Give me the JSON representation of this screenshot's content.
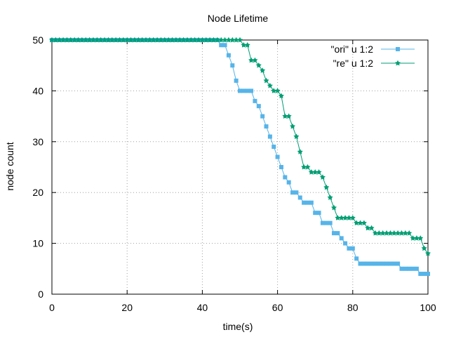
{
  "chart_data": {
    "type": "line",
    "title": "Node Lifetime",
    "xlabel": "time(s)",
    "ylabel": "node count",
    "xlim": [
      0,
      100
    ],
    "ylim": [
      0,
      50
    ],
    "xticks": [
      0,
      20,
      40,
      60,
      80,
      100
    ],
    "yticks": [
      0,
      10,
      20,
      30,
      40,
      50
    ],
    "grid": true,
    "legend_position": "top-right",
    "series": [
      {
        "name": "\"ori\" u 1:2",
        "color": "#56b4e9",
        "marker": "filled-square",
        "x": [
          0,
          1,
          2,
          3,
          4,
          5,
          6,
          7,
          8,
          9,
          10,
          11,
          12,
          13,
          14,
          15,
          16,
          17,
          18,
          19,
          20,
          21,
          22,
          23,
          24,
          25,
          26,
          27,
          28,
          29,
          30,
          31,
          32,
          33,
          34,
          35,
          36,
          37,
          38,
          39,
          40,
          41,
          42,
          43,
          44,
          45,
          46,
          47,
          48,
          49,
          50,
          51,
          52,
          53,
          54,
          55,
          56,
          57,
          58,
          59,
          60,
          61,
          62,
          63,
          64,
          65,
          66,
          67,
          68,
          69,
          70,
          71,
          72,
          73,
          74,
          75,
          76,
          77,
          78,
          79,
          80,
          81,
          82,
          83,
          84,
          85,
          86,
          87,
          88,
          89,
          90,
          91,
          92,
          93,
          94,
          95,
          96,
          97,
          98,
          99,
          100
        ],
        "y": [
          50,
          50,
          50,
          50,
          50,
          50,
          50,
          50,
          50,
          50,
          50,
          50,
          50,
          50,
          50,
          50,
          50,
          50,
          50,
          50,
          50,
          50,
          50,
          50,
          50,
          50,
          50,
          50,
          50,
          50,
          50,
          50,
          50,
          50,
          50,
          50,
          50,
          50,
          50,
          50,
          50,
          50,
          50,
          50,
          50,
          49,
          49,
          47,
          45,
          42,
          40,
          40,
          40,
          40,
          38,
          37,
          35,
          33,
          31,
          29,
          27,
          25,
          23,
          22,
          20,
          20,
          19,
          18,
          18,
          18,
          16,
          16,
          14,
          14,
          14,
          12,
          12,
          11,
          10,
          9,
          9,
          7,
          6,
          6,
          6,
          6,
          6,
          6,
          6,
          6,
          6,
          6,
          6,
          5,
          5,
          5,
          5,
          5,
          4,
          4,
          4
        ]
      },
      {
        "name": "\"re\" u 1:2",
        "color": "#009e73",
        "marker": "filled-star",
        "x": [
          0,
          1,
          2,
          3,
          4,
          5,
          6,
          7,
          8,
          9,
          10,
          11,
          12,
          13,
          14,
          15,
          16,
          17,
          18,
          19,
          20,
          21,
          22,
          23,
          24,
          25,
          26,
          27,
          28,
          29,
          30,
          31,
          32,
          33,
          34,
          35,
          36,
          37,
          38,
          39,
          40,
          41,
          42,
          43,
          44,
          45,
          46,
          47,
          48,
          49,
          50,
          51,
          52,
          53,
          54,
          55,
          56,
          57,
          58,
          59,
          60,
          61,
          62,
          63,
          64,
          65,
          66,
          67,
          68,
          69,
          70,
          71,
          72,
          73,
          74,
          75,
          76,
          77,
          78,
          79,
          80,
          81,
          82,
          83,
          84,
          85,
          86,
          87,
          88,
          89,
          90,
          91,
          92,
          93,
          94,
          95,
          96,
          97,
          98,
          99,
          100
        ],
        "y": [
          50,
          50,
          50,
          50,
          50,
          50,
          50,
          50,
          50,
          50,
          50,
          50,
          50,
          50,
          50,
          50,
          50,
          50,
          50,
          50,
          50,
          50,
          50,
          50,
          50,
          50,
          50,
          50,
          50,
          50,
          50,
          50,
          50,
          50,
          50,
          50,
          50,
          50,
          50,
          50,
          50,
          50,
          50,
          50,
          50,
          50,
          50,
          50,
          50,
          50,
          50,
          49,
          49,
          46,
          46,
          45,
          44,
          42,
          41,
          40,
          40,
          39,
          35,
          35,
          33,
          31,
          28,
          25,
          25,
          24,
          24,
          24,
          23,
          21,
          19,
          17,
          15,
          15,
          15,
          15,
          15,
          14,
          14,
          14,
          13,
          13,
          12,
          12,
          12,
          12,
          12,
          12,
          12,
          12,
          12,
          12,
          11,
          11,
          11,
          9,
          8
        ]
      }
    ]
  }
}
